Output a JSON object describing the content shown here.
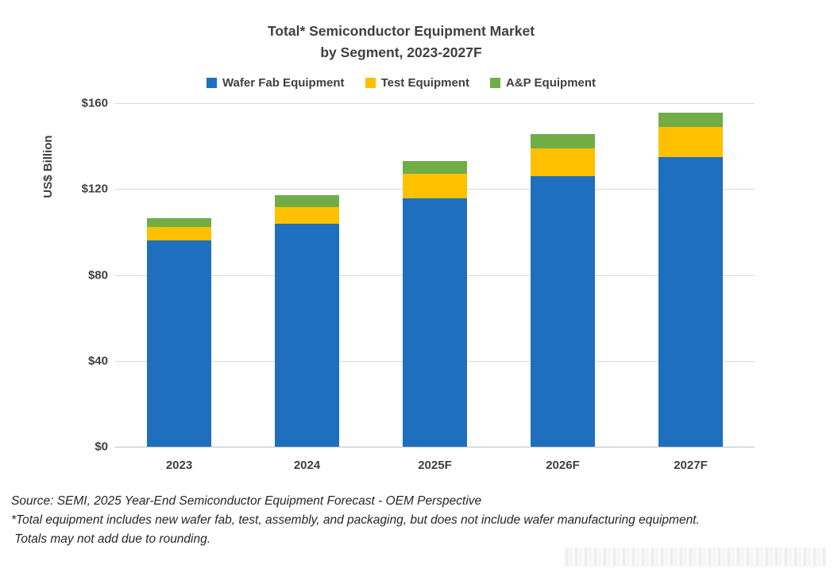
{
  "title": {
    "line1": "Total* Semiconductor Equipment Market",
    "line2": "by Segment, 2023-2027F"
  },
  "chart_data": {
    "type": "bar",
    "stacked": true,
    "title": "Total* Semiconductor Equipment Market by Segment, 2023-2027F",
    "categories": [
      "2023",
      "2024",
      "2025F",
      "2026F",
      "2027F"
    ],
    "series": [
      {
        "name": "Wafer Fab Equipment",
        "color": "#1f6fbf",
        "values": [
          96,
          104,
          115.5,
          126,
          135
        ]
      },
      {
        "name": "Test Equipment",
        "color": "#ffc000",
        "values": [
          6.3,
          7.5,
          11.5,
          13,
          14
        ]
      },
      {
        "name": "A&P Equipment",
        "color": "#70ad47",
        "values": [
          4,
          5.5,
          6,
          6.5,
          6.5
        ]
      }
    ],
    "xlabel": "",
    "ylabel": "US$ Billion",
    "ylim": [
      0,
      160
    ],
    "yticks": [
      0,
      40,
      80,
      120,
      160
    ],
    "ytick_labels": [
      "$0",
      "$40",
      "$80",
      "$120",
      "$160"
    ],
    "grid": true,
    "legend_position": "top"
  },
  "colors": {
    "gridline": "#d9d9d9",
    "axis": "#bfbfbf",
    "text": "#3f3f3f"
  },
  "footer": {
    "source": "Source: SEMI, 2025 Year-End Semiconductor Equipment Forecast - OEM Perspective",
    "note1": "*Total equipment includes new wafer fab, test, assembly, and packaging, but does not include wafer manufacturing equipment.",
    "note2": " Totals may not add due to rounding."
  }
}
